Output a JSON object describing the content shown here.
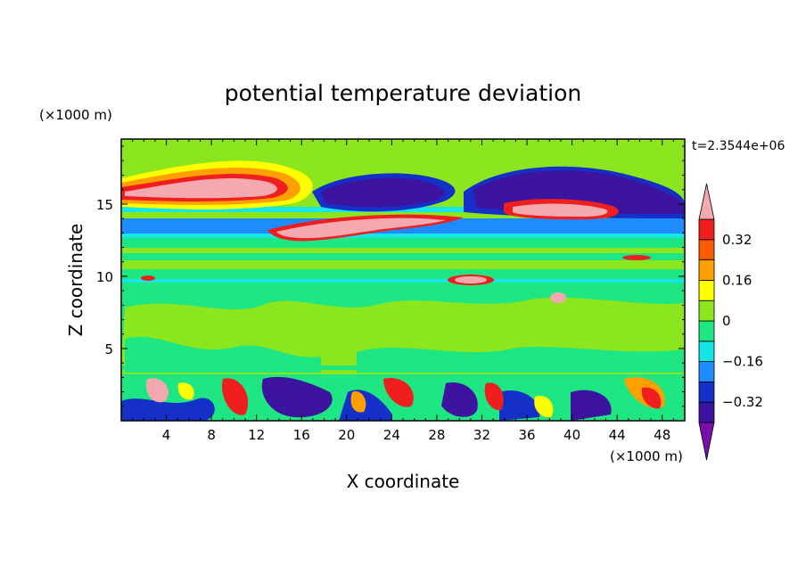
{
  "chart_data": {
    "type": "heatmap",
    "title": "potential temperature deviation",
    "xlabel": "X coordinate",
    "ylabel": "Z coordinate",
    "x_units": "(×1000 m)",
    "y_units": "(×1000 m)",
    "time_label": "t=2.3544e+06",
    "xlim": [
      0,
      50
    ],
    "ylim": [
      0,
      19.5
    ],
    "x_ticks": [
      4,
      8,
      12,
      16,
      20,
      24,
      28,
      32,
      36,
      40,
      44,
      48
    ],
    "y_ticks": [
      5,
      10,
      15
    ],
    "colorbar": {
      "levels": [
        -0.4,
        -0.32,
        -0.24,
        -0.16,
        -0.08,
        0,
        0.08,
        0.16,
        0.24,
        0.32,
        0.4
      ],
      "tick_labels": [
        "0.32",
        "0.16",
        "0",
        "−0.16",
        "−0.32"
      ],
      "tick_values": [
        0.32,
        0.16,
        0,
        -0.16,
        -0.32
      ],
      "colors": [
        "#7a0fa8",
        "#3c14a0",
        "#1430c8",
        "#1e8cff",
        "#14e6e6",
        "#1ee682",
        "#8ce61e",
        "#ffff00",
        "#ffa000",
        "#ff5a00",
        "#f01e1e",
        "#f4a8b0"
      ]
    }
  }
}
